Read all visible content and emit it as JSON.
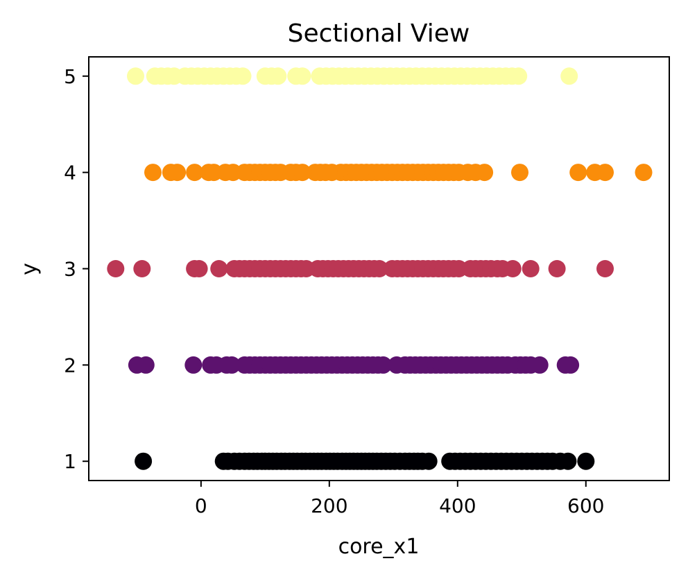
{
  "chart_data": {
    "type": "scatter",
    "title": "Sectional View",
    "xlabel": "core_x1",
    "ylabel": "y",
    "xlim": [
      -175,
      730
    ],
    "ylim": [
      0.8,
      5.2
    ],
    "xticks": [
      "0",
      "200",
      "400",
      "600"
    ],
    "yticks": [
      "1",
      "2",
      "3",
      "4",
      "5"
    ],
    "grid": false,
    "legend": "none",
    "colormap": "inferno",
    "series": [
      {
        "y": 1,
        "color": "#000004",
        "x": [
          -90,
          35,
          42,
          52,
          60,
          68,
          75,
          82,
          88,
          95,
          100,
          106,
          112,
          118,
          125,
          131,
          138,
          144,
          150,
          157,
          163,
          170,
          176,
          182,
          188,
          195,
          201,
          207,
          213,
          220,
          226,
          232,
          238,
          244,
          250,
          256,
          262,
          268,
          274,
          281,
          288,
          295,
          302,
          310,
          318,
          325,
          332,
          338,
          345,
          355,
          388,
          396,
          404,
          412,
          420,
          428,
          436,
          444,
          452,
          460,
          468,
          476,
          484,
          492,
          500,
          508,
          516,
          524,
          532,
          540,
          548,
          560,
          572,
          600
        ]
      },
      {
        "y": 2,
        "color": "#5c126e",
        "x": [
          -100,
          -86,
          -12,
          15,
          24,
          40,
          48,
          68,
          76,
          84,
          92,
          100,
          108,
          116,
          124,
          132,
          140,
          148,
          156,
          164,
          172,
          180,
          188,
          196,
          204,
          212,
          220,
          228,
          236,
          244,
          252,
          260,
          268,
          276,
          284,
          305,
          318,
          326,
          334,
          342,
          350,
          358,
          366,
          374,
          382,
          390,
          398,
          406,
          414,
          422,
          430,
          438,
          446,
          454,
          462,
          470,
          478,
          490,
          498,
          506,
          514,
          528,
          568,
          576
        ]
      },
      {
        "y": 3,
        "color": "#bb3754",
        "x": [
          -133,
          -92,
          -10,
          -3,
          28,
          52,
          60,
          68,
          76,
          84,
          92,
          100,
          108,
          116,
          124,
          132,
          140,
          148,
          156,
          164,
          182,
          190,
          198,
          206,
          214,
          222,
          230,
          238,
          246,
          254,
          262,
          270,
          278,
          298,
          306,
          314,
          322,
          330,
          338,
          346,
          354,
          362,
          370,
          378,
          386,
          394,
          402,
          420,
          428,
          436,
          444,
          452,
          462,
          470,
          486,
          514,
          555,
          630
        ]
      },
      {
        "y": 4,
        "color": "#fa8d0a",
        "x": [
          -75,
          -47,
          -37,
          -10,
          12,
          20,
          38,
          50,
          68,
          76,
          84,
          92,
          100,
          108,
          116,
          124,
          140,
          148,
          158,
          178,
          186,
          194,
          204,
          218,
          226,
          234,
          242,
          250,
          258,
          266,
          274,
          282,
          290,
          298,
          306,
          314,
          322,
          330,
          338,
          346,
          354,
          362,
          370,
          378,
          386,
          394,
          402,
          416,
          428,
          442,
          497,
          588,
          614,
          630,
          690
        ]
      },
      {
        "y": 5,
        "color": "#fcfea4",
        "x": [
          -102,
          -72,
          -62,
          -52,
          -42,
          -25,
          -15,
          -5,
          5,
          15,
          25,
          35,
          45,
          55,
          65,
          100,
          110,
          120,
          148,
          158,
          185,
          195,
          205,
          215,
          225,
          235,
          245,
          255,
          265,
          275,
          285,
          295,
          305,
          315,
          325,
          335,
          345,
          355,
          365,
          375,
          385,
          395,
          405,
          415,
          425,
          435,
          445,
          455,
          465,
          475,
          485,
          495,
          574
        ]
      }
    ]
  }
}
